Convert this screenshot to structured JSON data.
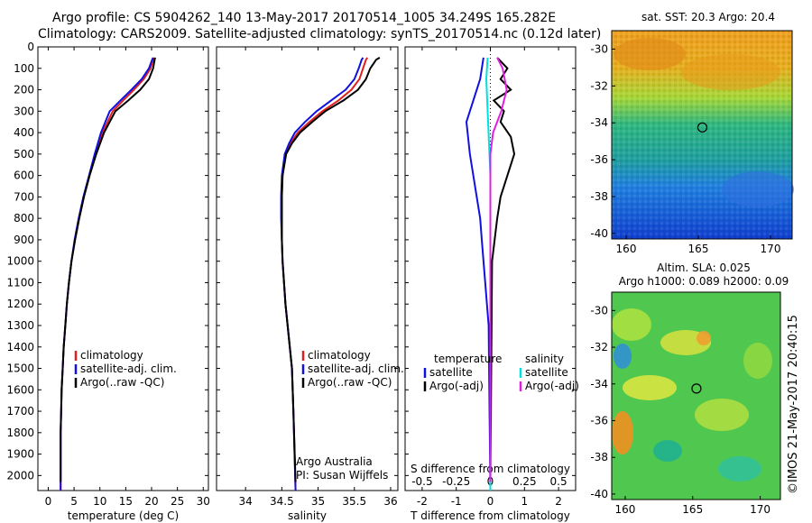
{
  "header": {
    "line1": "Argo profile: CS 5904262_140 13-May-2017 20170514_1005 34.249S 165.282E",
    "line2": "Climatology: CARS2009. Satellite-adjusted climatology: synTS_20170514.nc (0.12d later)"
  },
  "credit": "©IMOS 21-May-2017 20:40:15",
  "colors": {
    "clim": "#e02020",
    "sat": "#1010e0",
    "argo": "#000000",
    "sat_s": "#00e0e0",
    "argo_s": "#e020e0"
  },
  "chart_data": [
    {
      "type": "line",
      "xlabel": "temperature (deg C)",
      "xticks": [
        "0",
        "5",
        "10",
        "15",
        "20",
        "25",
        "30"
      ],
      "yticks": [
        "0",
        "100",
        "200",
        "300",
        "400",
        "500",
        "600",
        "700",
        "800",
        "900",
        "1000",
        "1100",
        "1200",
        "1300",
        "1400",
        "1500",
        "1600",
        "1700",
        "1800",
        "1900",
        "2000"
      ],
      "xlim": [
        -2,
        31
      ],
      "ylim": [
        0,
        2070
      ],
      "legend": [
        "climatology",
        "satellite-adj. clim.",
        "Argo(..raw -QC)"
      ],
      "series": [
        {
          "name": "climatology",
          "x": [
            20.5,
            20.3,
            19.8,
            18.5,
            16.6,
            14.5,
            12.5,
            10.5,
            9.2,
            8.0,
            6.9,
            6.0,
            5.2,
            4.5,
            4.0,
            3.6,
            3.3,
            3.0,
            2.8,
            2.6,
            2.5,
            2.4,
            2.4
          ],
          "y": [
            50,
            60,
            100,
            150,
            200,
            250,
            300,
            400,
            500,
            600,
            700,
            800,
            900,
            1000,
            1100,
            1200,
            1300,
            1400,
            1500,
            1600,
            1700,
            1800,
            2070
          ]
        },
        {
          "name": "satellite-adj. clim.",
          "x": [
            20.3,
            20.1,
            19.5,
            18.1,
            16.1,
            14.0,
            11.9,
            10.2,
            9.0,
            7.9,
            6.8,
            5.9,
            5.1,
            4.5,
            4.0,
            3.6,
            3.3,
            3.0,
            2.8,
            2.6,
            2.5,
            2.4,
            2.4
          ],
          "y": [
            50,
            60,
            100,
            150,
            200,
            250,
            300,
            400,
            500,
            600,
            700,
            800,
            900,
            1000,
            1100,
            1200,
            1300,
            1400,
            1500,
            1600,
            1700,
            1800,
            2070
          ]
        },
        {
          "name": "Argo(..raw -QC)",
          "x": [
            20.7,
            20.6,
            20.3,
            19.5,
            17.8,
            15.5,
            13.0,
            10.8,
            9.3,
            8.0,
            6.9,
            6.0,
            5.2,
            4.5,
            4.0,
            3.6,
            3.3,
            3.0,
            2.8,
            2.6,
            2.5,
            2.4,
            2.4
          ],
          "y": [
            50,
            60,
            100,
            150,
            200,
            250,
            300,
            400,
            500,
            600,
            700,
            800,
            900,
            1000,
            1100,
            1200,
            1300,
            1400,
            1500,
            1600,
            1700,
            1800,
            2030
          ]
        }
      ]
    },
    {
      "type": "line",
      "xlabel": "salinity",
      "xticks": [
        "34",
        "34.5",
        "35",
        "35.5",
        "36"
      ],
      "xlim": [
        33.6,
        36.1
      ],
      "ylim": [
        0,
        2070
      ],
      "legend": [
        "climatology",
        "satellite-adj. clim.",
        "Argo(..raw -QC)"
      ],
      "annotation": [
        "Argo Australia",
        "PI: Susan Wijffels"
      ],
      "series": [
        {
          "name": "climatology",
          "x": [
            35.68,
            35.66,
            35.62,
            35.57,
            35.46,
            35.28,
            35.06,
            34.88,
            34.72,
            34.62,
            34.55,
            34.51,
            34.5,
            34.5,
            34.5,
            34.51,
            34.53,
            34.55,
            34.58,
            34.61,
            34.64,
            34.66,
            34.69
          ],
          "y": [
            50,
            60,
            100,
            150,
            200,
            250,
            300,
            350,
            400,
            450,
            500,
            600,
            700,
            800,
            900,
            1000,
            1100,
            1200,
            1300,
            1400,
            1500,
            1700,
            2070
          ]
        },
        {
          "name": "satellite-adj. clim.",
          "x": [
            35.62,
            35.6,
            35.56,
            35.5,
            35.38,
            35.18,
            34.98,
            34.82,
            34.68,
            34.6,
            34.54,
            34.5,
            34.49,
            34.49,
            34.5,
            34.51,
            34.53,
            34.55,
            34.58,
            34.61,
            34.64,
            34.66,
            34.69
          ],
          "y": [
            50,
            60,
            100,
            150,
            200,
            250,
            300,
            350,
            400,
            450,
            500,
            600,
            700,
            800,
            900,
            1000,
            1100,
            1200,
            1300,
            1400,
            1500,
            1700,
            2070
          ]
        },
        {
          "name": "Argo(..raw -QC)",
          "x": [
            35.85,
            35.8,
            35.72,
            35.66,
            35.55,
            35.35,
            35.1,
            34.92,
            34.75,
            34.64,
            34.56,
            34.51,
            34.5,
            34.5,
            34.5,
            34.51,
            34.53,
            34.55,
            34.58,
            34.61,
            34.64,
            34.66,
            34.69
          ],
          "y": [
            50,
            60,
            100,
            150,
            200,
            250,
            300,
            350,
            400,
            450,
            500,
            600,
            700,
            800,
            900,
            1000,
            1100,
            1200,
            1300,
            1400,
            1500,
            1700,
            2030
          ]
        }
      ]
    },
    {
      "type": "line",
      "xlabel": "T difference from climatology",
      "xlabel_top": "S difference from climatology",
      "xticks": [
        "-2",
        "-1",
        "0",
        "1",
        "2"
      ],
      "xticks_top": [
        "-0.5",
        "-0.25",
        "0",
        "0.25",
        "0.5"
      ],
      "xlim": [
        -2.5,
        2.5
      ],
      "ylim": [
        0,
        2070
      ],
      "legend_temperature": [
        "temperature",
        "satellite",
        "Argo(-adj)"
      ],
      "legend_salinity": [
        "salinity",
        "satellite",
        "Argo(-adj)"
      ],
      "series": [
        {
          "name": "temperature satellite",
          "x": [
            -0.2,
            -0.3,
            -0.5,
            -0.6,
            -0.7,
            -0.6,
            -0.5,
            -0.4,
            -0.3,
            -0.25,
            -0.15,
            -0.05,
            0
          ],
          "y": [
            50,
            150,
            250,
            300,
            350,
            500,
            600,
            700,
            800,
            900,
            1100,
            1300,
            2070
          ]
        },
        {
          "name": "temperature Argo(-adj)",
          "x": [
            0.2,
            0.5,
            0.3,
            0.6,
            0.1,
            0.4,
            0.3,
            0.6,
            0.7,
            0.5,
            0.3,
            0.2,
            0.05,
            0
          ],
          "y": [
            50,
            100,
            150,
            200,
            250,
            300,
            350,
            420,
            500,
            600,
            700,
            800,
            1000,
            2030
          ]
        },
        {
          "name": "salinity satellite",
          "x": [
            -0.02,
            -0.03,
            -0.02,
            -0.01,
            0,
            0,
            0
          ],
          "y": [
            50,
            150,
            300,
            450,
            600,
            1000,
            2070
          ]
        },
        {
          "name": "salinity Argo(-adj)",
          "x": [
            0.05,
            0.09,
            0.12,
            0.08,
            0.02,
            0,
            0
          ],
          "y": [
            50,
            100,
            200,
            300,
            400,
            500,
            2030
          ]
        }
      ]
    }
  ],
  "maps": [
    {
      "title": "sat. SST: 20.3 Argo: 20.4",
      "xticks": [
        "160",
        "165",
        "170"
      ],
      "yticks": [
        "-30",
        "-32",
        "-34",
        "-36",
        "-38",
        "-40"
      ],
      "float_lon": 165.28,
      "float_lat": -34.25
    },
    {
      "title_line1": "Altim. SLA: 0.025",
      "title_line2": "Argo h1000: 0.089 h2000: 0.09",
      "xticks": [
        "160",
        "165",
        "170"
      ],
      "yticks": [
        "-30",
        "-32",
        "-34",
        "-36",
        "-38",
        "-40"
      ],
      "float_lon": 165.28,
      "float_lat": -34.25
    }
  ]
}
